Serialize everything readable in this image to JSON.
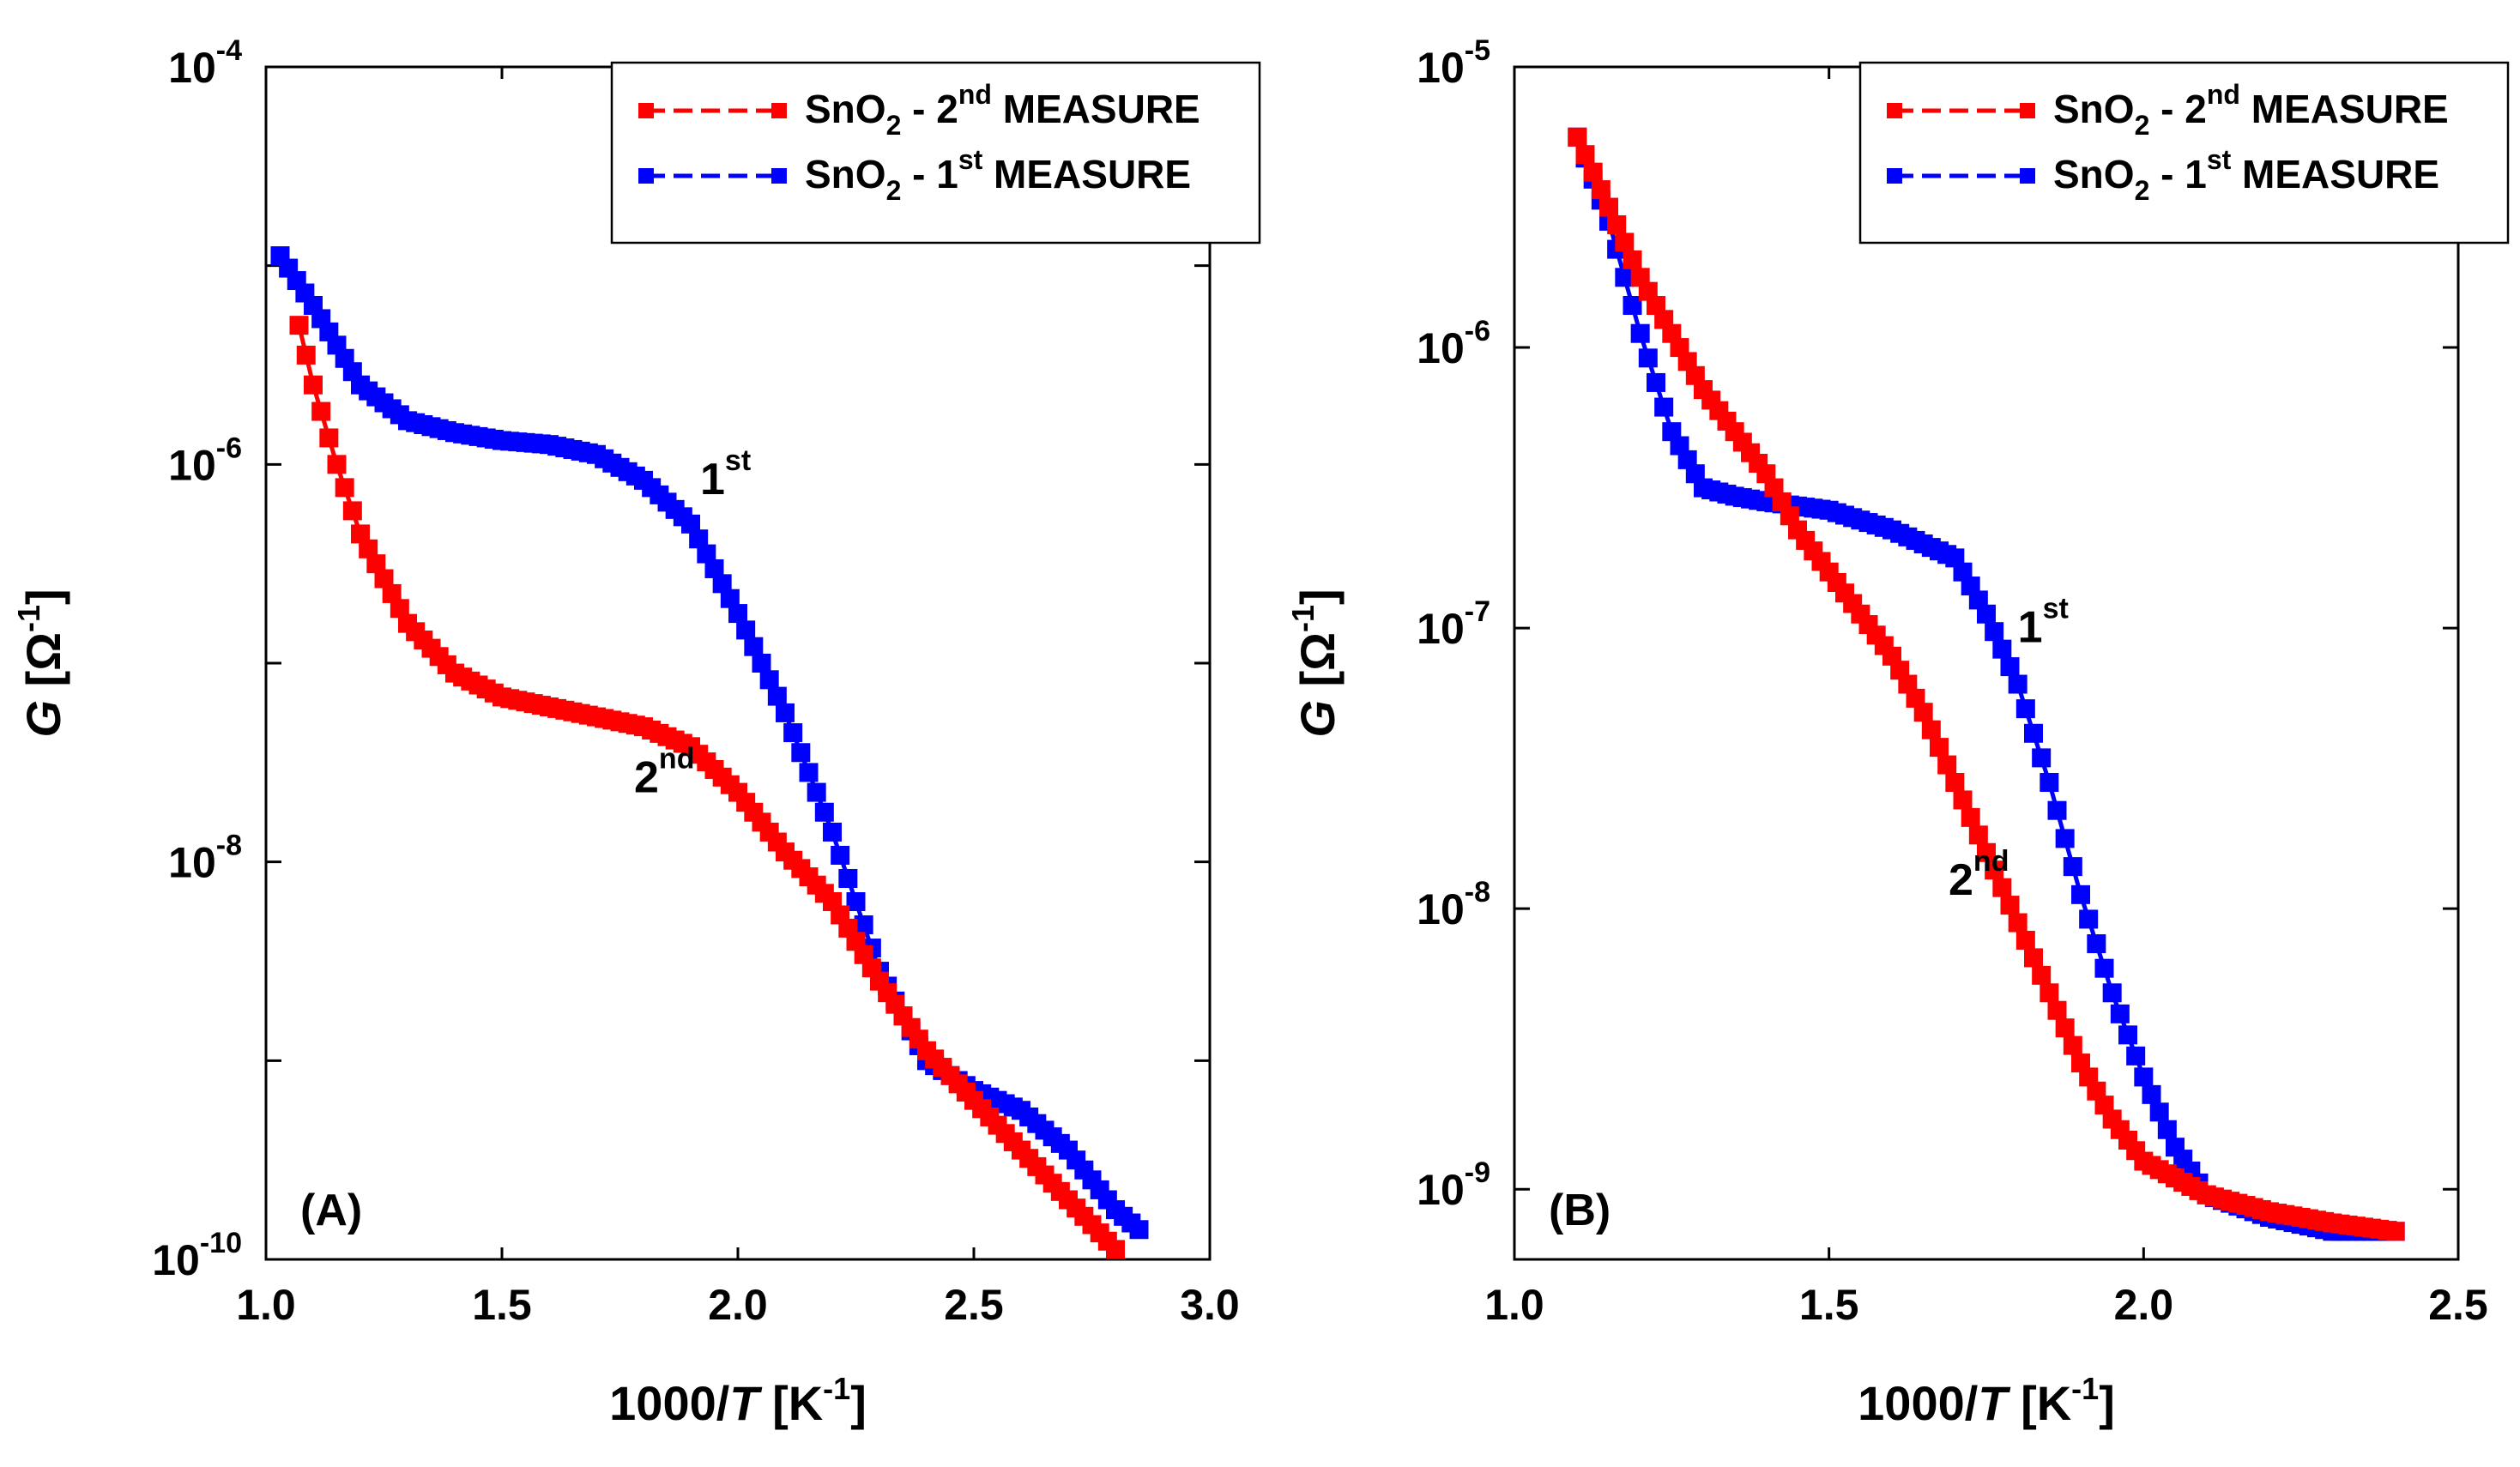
{
  "colors": {
    "first_measure": "#0000ff",
    "second_measure": "#ff0000",
    "axis": "#000000",
    "background": "#ffffff"
  },
  "chart_data": [
    {
      "panel": "(A)",
      "type": "scatter",
      "xlabel": {
        "pre": "1000/",
        "italic": "T",
        "post": " [K",
        "sup": "-1",
        "close": "]"
      },
      "ylabel": {
        "italic": "G",
        "pre": " [Ω",
        "sup": "-1",
        "close": "]"
      },
      "xlim": [
        1.0,
        3.0
      ],
      "ylim_log10": [
        -10,
        -4
      ],
      "yscale": "log",
      "xticks": [
        "1.0",
        "1.5",
        "2.0",
        "2.5",
        "3.0"
      ],
      "yticks": [
        {
          "exp": -10,
          "base": "10",
          "sup": "-10"
        },
        {
          "exp": -8,
          "base": "10",
          "sup": "-8"
        },
        {
          "exp": -6,
          "base": "10",
          "sup": "-6"
        },
        {
          "exp": -4,
          "base": "10",
          "sup": "-4"
        }
      ],
      "legend": {
        "position": "top-right",
        "entries": [
          {
            "pre": "SnO",
            "sub": "2",
            "mid": " - 2",
            "sup": "nd",
            "post": " MEASURE",
            "color": "#ff0000"
          },
          {
            "pre": "SnO",
            "sub": "2",
            "mid": " - 1",
            "sup": "st",
            "post": " MEASURE",
            "color": "#0000ff"
          }
        ]
      },
      "annotations": [
        {
          "base": "1",
          "sup": "st",
          "x": 1.92,
          "log10y": -6.15
        },
        {
          "base": "2",
          "sup": "nd",
          "x": 1.78,
          "log10y": -7.65
        }
      ],
      "series": [
        {
          "name": "SnO2 - 1st MEASURE",
          "color": "#0000ff",
          "points": [
            [
              1.03,
              -4.95
            ],
            [
              1.1,
              -5.2
            ],
            [
              1.2,
              -5.6
            ],
            [
              1.3,
              -5.78
            ],
            [
              1.4,
              -5.84
            ],
            [
              1.5,
              -5.88
            ],
            [
              1.6,
              -5.9
            ],
            [
              1.7,
              -5.95
            ],
            [
              1.8,
              -6.08
            ],
            [
              1.9,
              -6.3
            ],
            [
              2.0,
              -6.75
            ],
            [
              2.1,
              -7.25
            ],
            [
              2.2,
              -7.85
            ],
            [
              2.3,
              -8.55
            ],
            [
              2.4,
              -9.0
            ],
            [
              2.5,
              -9.15
            ],
            [
              2.6,
              -9.25
            ],
            [
              2.7,
              -9.45
            ],
            [
              2.8,
              -9.75
            ],
            [
              2.85,
              -9.85
            ]
          ]
        },
        {
          "name": "SnO2 - 2nd MEASURE",
          "color": "#ff0000",
          "points": [
            [
              1.07,
              -5.3
            ],
            [
              1.1,
              -5.6
            ],
            [
              1.15,
              -6.0
            ],
            [
              1.2,
              -6.35
            ],
            [
              1.3,
              -6.8
            ],
            [
              1.4,
              -7.05
            ],
            [
              1.5,
              -7.17
            ],
            [
              1.6,
              -7.22
            ],
            [
              1.7,
              -7.27
            ],
            [
              1.8,
              -7.32
            ],
            [
              1.9,
              -7.42
            ],
            [
              2.0,
              -7.65
            ],
            [
              2.1,
              -7.95
            ],
            [
              2.2,
              -8.2
            ],
            [
              2.3,
              -8.6
            ],
            [
              2.4,
              -8.95
            ],
            [
              2.5,
              -9.2
            ],
            [
              2.6,
              -9.45
            ],
            [
              2.7,
              -9.7
            ],
            [
              2.8,
              -9.95
            ]
          ]
        }
      ]
    },
    {
      "panel": "(B)",
      "type": "scatter",
      "xlabel": {
        "pre": "1000/",
        "italic": "T",
        "post": " [K",
        "sup": "-1",
        "close": "]"
      },
      "ylabel": {
        "italic": "G",
        "pre": " [Ω",
        "sup": "-1",
        "close": "]"
      },
      "xlim": [
        1.0,
        2.5
      ],
      "ylim_log10": [
        -9.25,
        -5
      ],
      "yscale": "log",
      "xticks": [
        "1.0",
        "1.5",
        "2.0",
        "2.5"
      ],
      "yticks": [
        {
          "exp": -9,
          "base": "10",
          "sup": "-9"
        },
        {
          "exp": -8,
          "base": "10",
          "sup": "-8"
        },
        {
          "exp": -7,
          "base": "10",
          "sup": "-7"
        },
        {
          "exp": -6,
          "base": "10",
          "sup": "-6"
        },
        {
          "exp": -5,
          "base": "10",
          "sup": "-5"
        }
      ],
      "legend": {
        "position": "top-right",
        "entries": [
          {
            "pre": "SnO",
            "sub": "2",
            "mid": " - 2",
            "sup": "nd",
            "post": " MEASURE",
            "color": "#ff0000"
          },
          {
            "pre": "SnO",
            "sub": "2",
            "mid": " - 1",
            "sup": "st",
            "post": " MEASURE",
            "color": "#0000ff"
          }
        ]
      },
      "annotations": [
        {
          "base": "1",
          "sup": "st",
          "x": 1.8,
          "log10y": -7.05
        },
        {
          "base": "2",
          "sup": "nd",
          "x": 1.69,
          "log10y": -7.95
        }
      ],
      "series": [
        {
          "name": "SnO2 - 1st MEASURE",
          "color": "#0000ff",
          "points": [
            [
              1.1,
              -5.25
            ],
            [
              1.15,
              -5.55
            ],
            [
              1.2,
              -5.95
            ],
            [
              1.25,
              -6.3
            ],
            [
              1.3,
              -6.5
            ],
            [
              1.35,
              -6.53
            ],
            [
              1.4,
              -6.55
            ],
            [
              1.5,
              -6.58
            ],
            [
              1.6,
              -6.65
            ],
            [
              1.7,
              -6.75
            ],
            [
              1.75,
              -6.95
            ],
            [
              1.8,
              -7.2
            ],
            [
              1.85,
              -7.55
            ],
            [
              1.9,
              -7.95
            ],
            [
              1.95,
              -8.3
            ],
            [
              2.0,
              -8.6
            ],
            [
              2.05,
              -8.85
            ],
            [
              2.1,
              -9.02
            ],
            [
              2.2,
              -9.1
            ],
            [
              2.3,
              -9.15
            ],
            [
              2.4,
              -9.15
            ]
          ]
        },
        {
          "name": "SnO2 - 2nd MEASURE",
          "color": "#ff0000",
          "points": [
            [
              1.1,
              -5.25
            ],
            [
              1.15,
              -5.5
            ],
            [
              1.2,
              -5.75
            ],
            [
              1.25,
              -5.95
            ],
            [
              1.3,
              -6.15
            ],
            [
              1.35,
              -6.3
            ],
            [
              1.4,
              -6.45
            ],
            [
              1.45,
              -6.65
            ],
            [
              1.5,
              -6.8
            ],
            [
              1.55,
              -6.95
            ],
            [
              1.6,
              -7.1
            ],
            [
              1.65,
              -7.3
            ],
            [
              1.7,
              -7.55
            ],
            [
              1.75,
              -7.8
            ],
            [
              1.8,
              -8.05
            ],
            [
              1.85,
              -8.3
            ],
            [
              1.9,
              -8.55
            ],
            [
              1.95,
              -8.75
            ],
            [
              2.0,
              -8.9
            ],
            [
              2.1,
              -9.02
            ],
            [
              2.2,
              -9.08
            ],
            [
              2.3,
              -9.12
            ],
            [
              2.4,
              -9.15
            ]
          ]
        }
      ]
    }
  ]
}
